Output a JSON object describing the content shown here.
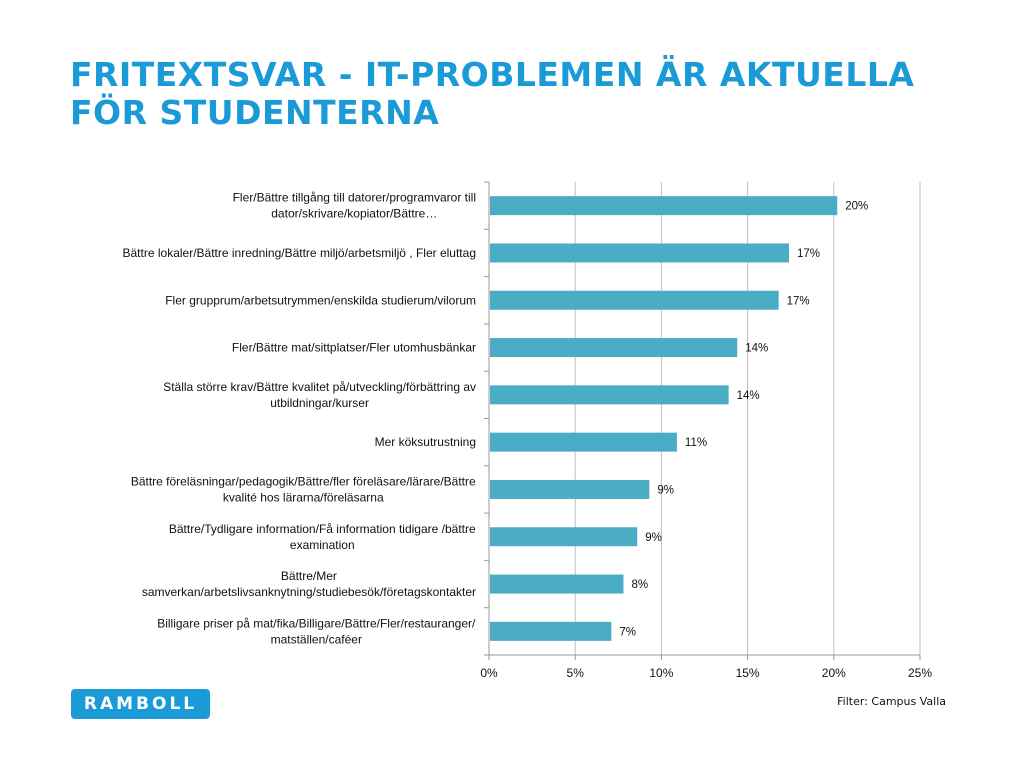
{
  "title": {
    "line1": "FRITEXTSVAR - IT-PROBLEMEN ÄR AKTUELLA",
    "line2": "FÖR STUDENTERNA"
  },
  "logo": {
    "text": "RAMBOLL"
  },
  "filter": "Filter: Campus Valla",
  "colors": {
    "bar": "#4bacc6",
    "title": "#1a9ad6",
    "grid": "#bfbfbf",
    "axis": "#999999"
  },
  "chart_data": {
    "type": "bar",
    "orientation": "horizontal",
    "categories": [
      [
        "Fler/Bättre tillgång till datorer/programvaror till",
        "dator/skrivare/kopiator/Bättre…"
      ],
      [
        "Bättre lokaler/Bättre inredning/Bättre miljö/arbetsmiljö , Fler eluttag"
      ],
      [
        "Fler grupprum/arbetsutrymmen/enskilda studierum/vilorum"
      ],
      [
        "Fler/Bättre mat/sittplatser/Fler utomhusbänkar"
      ],
      [
        "Ställa större krav/Bättre kvalitet på/utveckling/förbättring av",
        "utbildningar/kurser"
      ],
      [
        "Mer köksutrustning"
      ],
      [
        "Bättre föreläsningar/pedagogik/Bättre/fler föreläsare/lärare/Bättre",
        "kvalité hos lärarna/föreläsarna"
      ],
      [
        "Bättre/Tydligare information/Få information tidigare /bättre",
        "examination"
      ],
      [
        "Bättre/Mer",
        "samverkan/arbetslivsanknytning/studiebesök/företagskontakter"
      ],
      [
        "Billigare priser på mat/fika/Billigare/Bättre/Fler/restauranger/",
        "matställen/caféer"
      ]
    ],
    "values": [
      20.2,
      17.4,
      16.8,
      14.4,
      13.9,
      10.9,
      9.3,
      8.6,
      7.8,
      7.1
    ],
    "value_labels": [
      "20%",
      "17%",
      "17%",
      "14%",
      "14%",
      "11%",
      "9%",
      "9%",
      "8%",
      "7%"
    ],
    "xlim": [
      0,
      25
    ],
    "xticks": [
      0,
      5,
      10,
      15,
      20,
      25
    ],
    "xtick_labels": [
      "0%",
      "5%",
      "10%",
      "15%",
      "20%",
      "25%"
    ],
    "grid": true,
    "legend": "none"
  }
}
